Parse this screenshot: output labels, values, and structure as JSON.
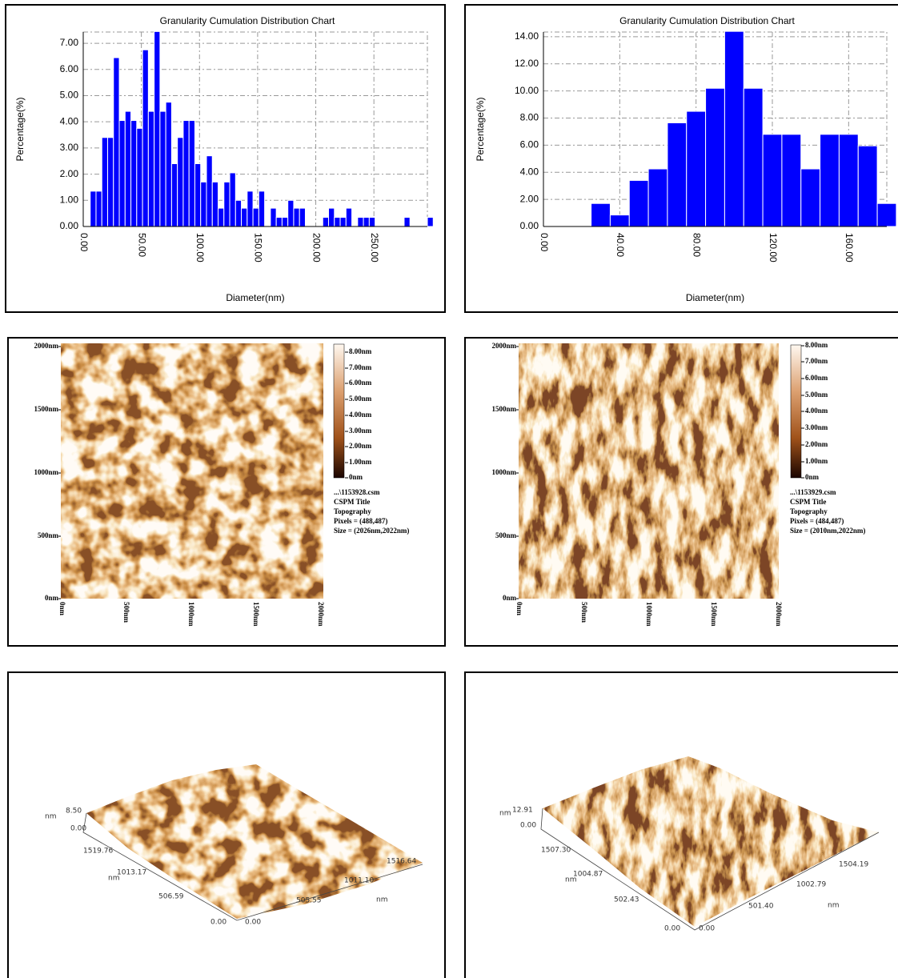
{
  "chart_data": [
    {
      "type": "histogram",
      "title": "Granularity Cumulation Distribution  Chart",
      "x_label": "Diameter(nm)",
      "y_label": "Percentage(%)",
      "color": "#0000ff",
      "grid": true,
      "bins": [
        6,
        11,
        16,
        21,
        26,
        31,
        36,
        41,
        46,
        51,
        56,
        61,
        66,
        71,
        76,
        81,
        86,
        91,
        96,
        101,
        106,
        111,
        116,
        121,
        126,
        131,
        136,
        141,
        146,
        151,
        156,
        161,
        166,
        171,
        176,
        181,
        186,
        191,
        196,
        201,
        206,
        211,
        216,
        221,
        226,
        231,
        236,
        241,
        246,
        251,
        256,
        261,
        266,
        271,
        276,
        281,
        286,
        291,
        296,
        301
      ],
      "values": [
        1.35,
        1.35,
        3.4,
        3.4,
        6.45,
        4.05,
        4.4,
        4.05,
        3.75,
        6.75,
        4.4,
        7.45,
        4.4,
        4.75,
        2.4,
        3.4,
        4.05,
        4.05,
        2.4,
        1.7,
        2.7,
        1.7,
        0.7,
        1.7,
        2.05,
        1.0,
        0.7,
        1.35,
        0.7,
        1.35,
        0,
        0.7,
        0.35,
        0.35,
        1.0,
        0.7,
        0.7,
        0,
        0,
        0,
        0.35,
        0.7,
        0.35,
        0.35,
        0.7,
        0,
        0.35,
        0.35,
        0.35,
        0,
        0,
        0,
        0,
        0,
        0.35,
        0,
        0,
        0,
        0.35
      ],
      "xlim": [
        0,
        296
      ],
      "ylim": [
        0,
        7.43
      ],
      "xticks": [
        {
          "value": 0,
          "label": "0.00"
        },
        {
          "value": 50,
          "label": "50.00"
        },
        {
          "value": 100,
          "label": "100.00"
        },
        {
          "value": 150,
          "label": "150.00"
        },
        {
          "value": 200,
          "label": "200.00"
        },
        {
          "value": 250,
          "label": "250.00"
        }
      ],
      "yticks": [
        {
          "value": 0,
          "label": "0.00"
        },
        {
          "value": 1,
          "label": "1.00"
        },
        {
          "value": 2,
          "label": "2.00"
        },
        {
          "value": 3,
          "label": "3.00"
        },
        {
          "value": 4,
          "label": "4.00"
        },
        {
          "value": 5,
          "label": "5.00"
        },
        {
          "value": 6,
          "label": "6.00"
        },
        {
          "value": 7,
          "label": "7.00"
        }
      ]
    },
    {
      "type": "histogram",
      "title": "Granularity Cumulation Distribution  Chart",
      "x_label": "Diameter(nm)",
      "y_label": "Percentage(%)",
      "color": "#0000ff",
      "grid": true,
      "bins": [
        25,
        35,
        45,
        55,
        65,
        75,
        85,
        95,
        105,
        115,
        125,
        135,
        145,
        155,
        165,
        175,
        185
      ],
      "values": [
        1.7,
        0.85,
        3.4,
        4.25,
        7.65,
        8.5,
        10.2,
        14.4,
        10.2,
        6.8,
        6.8,
        4.25,
        6.8,
        6.8,
        5.95,
        1.7
      ],
      "xlim": [
        0,
        180
      ],
      "ylim": [
        0,
        14.35
      ],
      "xticks": [
        {
          "value": 0,
          "label": "0.00"
        },
        {
          "value": 40,
          "label": "40.00"
        },
        {
          "value": 80,
          "label": "80.00"
        },
        {
          "value": 120,
          "label": "120.00"
        },
        {
          "value": 160,
          "label": "160.00"
        }
      ],
      "yticks": [
        {
          "value": 0,
          "label": "0.00"
        },
        {
          "value": 2,
          "label": "2.00"
        },
        {
          "value": 4,
          "label": "4.00"
        },
        {
          "value": 6,
          "label": "6.00"
        },
        {
          "value": 8,
          "label": "8.00"
        },
        {
          "value": 10,
          "label": "10.00"
        },
        {
          "value": 12,
          "label": "12.00"
        },
        {
          "value": 14,
          "label": "14.00"
        }
      ]
    }
  ],
  "afm_images": [
    {
      "y_axis_labels": [
        "2000nm",
        "1500nm",
        "1000nm",
        "500nm",
        "0nm"
      ],
      "x_axis_labels": [
        "0nm",
        "500nm",
        "1000nm",
        "1500nm",
        "2000nm"
      ],
      "colorbar_labels": [
        "8.00nm",
        "7.00nm",
        "6.00nm",
        "5.00nm",
        "4.00nm",
        "3.00nm",
        "2.00nm",
        "1.00nm",
        "0nm"
      ],
      "info": [
        "...\\1153928.csm",
        "CSPM Title",
        "Topography",
        "Pixels = (488,487)",
        "Size = (2026nm,2022nm)"
      ]
    },
    {
      "y_axis_labels": [
        "2000nm",
        "1500nm",
        "1000nm",
        "500nm",
        "0nm"
      ],
      "x_axis_labels": [
        "0nm",
        "500nm",
        "1000nm",
        "1500nm",
        "2000nm"
      ],
      "colorbar_labels": [
        "8.00nm",
        "7.00nm",
        "6.00nm",
        "5.00nm",
        "4.00nm",
        "3.00nm",
        "2.00nm",
        "1.00nm",
        "0nm"
      ],
      "info": [
        "...\\1153929.csm",
        "CSPM Title",
        "Topography",
        "Pixels = (484,487)",
        "Size = (2010nm,2022nm)"
      ]
    }
  ],
  "surface_plots": [
    {
      "labels": [
        "nm",
        "8.50",
        "0.00",
        "1519.76",
        "1013.17",
        "nm",
        "506.59",
        "0.00",
        "0.00",
        "505.55",
        "1011.10",
        "1516.64",
        "nm"
      ]
    },
    {
      "labels": [
        "nm",
        "12.91",
        "0.00",
        "1507.30",
        "1004.87",
        "nm",
        "502.43",
        "0.00",
        "0.00",
        "501.40",
        "1002.79",
        "1504.19",
        "nm"
      ]
    }
  ]
}
